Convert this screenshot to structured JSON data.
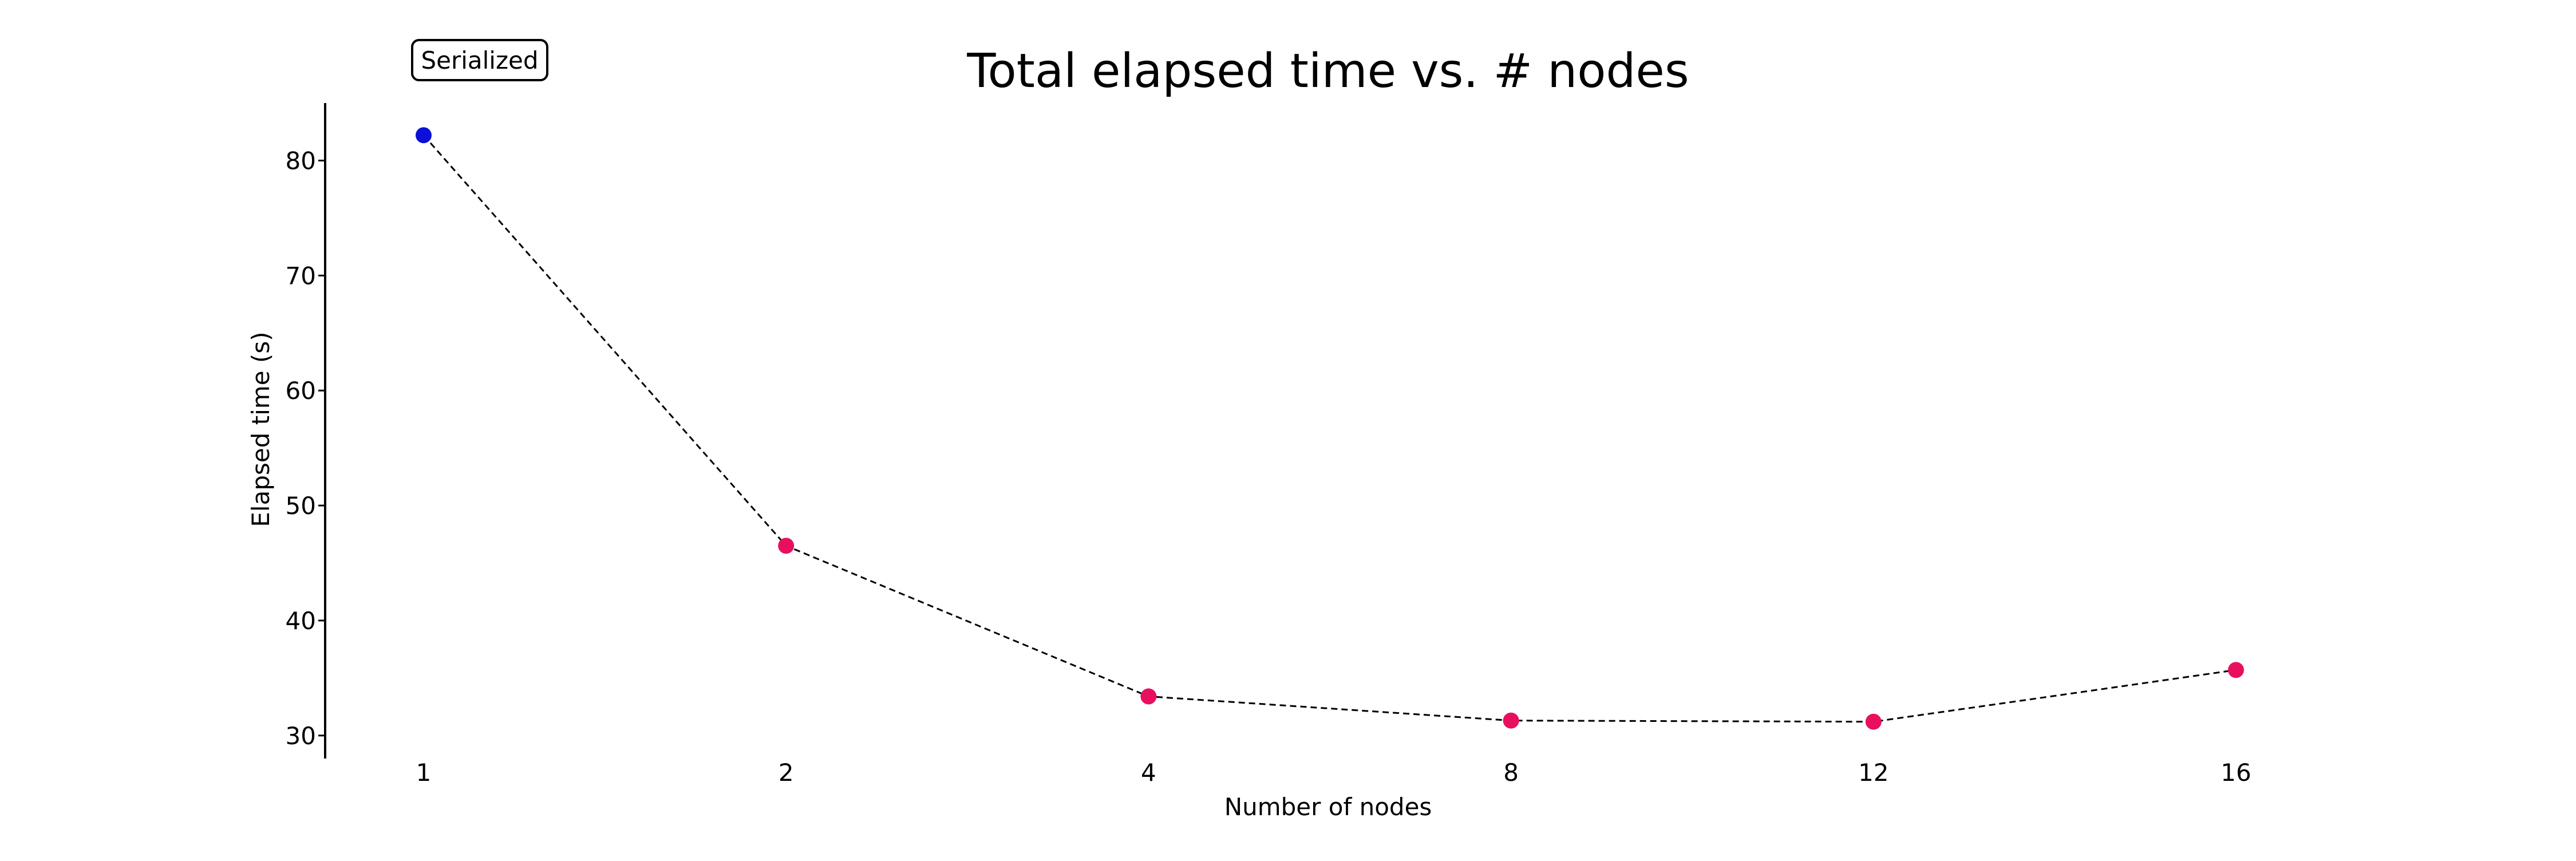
{
  "chart_data": {
    "type": "line",
    "title": "Total elapsed time vs. # nodes",
    "xlabel": "Number of nodes",
    "ylabel": "Elapsed time (s)",
    "x": [
      "1",
      "2",
      "4",
      "8",
      "12",
      "16"
    ],
    "ylim": [
      28,
      85
    ],
    "yticks": [
      30,
      40,
      50,
      60,
      70,
      80
    ],
    "grid": false,
    "line_style": "dashed",
    "line_color": "#000000",
    "series": [
      {
        "values": [
          82.2,
          46.5,
          33.4,
          31.3,
          31.2,
          35.7
        ],
        "point_colors": [
          "#0a10d8",
          "#e8105e",
          "#e8105e",
          "#e8105e",
          "#e8105e",
          "#e8105e"
        ]
      }
    ],
    "annotations": [
      {
        "text": "Serialized",
        "x": "1",
        "anchor": "above-point",
        "boxed": true
      }
    ]
  }
}
